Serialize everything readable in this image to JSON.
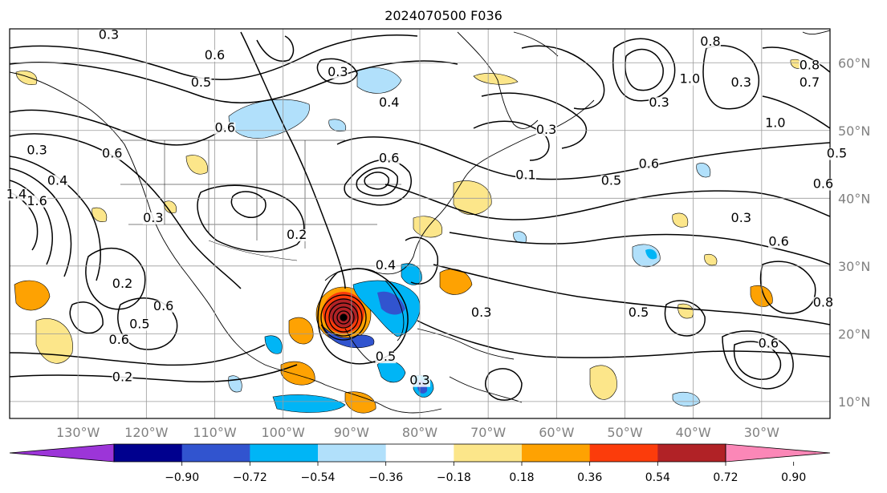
{
  "title": "2024070500 F036",
  "map": {
    "lon_range": [
      -140,
      -20
    ],
    "lat_range": [
      7.5,
      65
    ],
    "lon_ticks": [
      "130°W",
      "120°W",
      "110°W",
      "100°W",
      "90°W",
      "80°W",
      "70°W",
      "60°W",
      "50°W",
      "40°W",
      "30°W"
    ],
    "lat_ticks": [
      "10°N",
      "20°N",
      "30°N",
      "40°N",
      "50°N",
      "60°N"
    ],
    "tick_color": "#808080",
    "grid": true,
    "contour_labels": [
      {
        "text": "0.3",
        "lon": -125.5,
        "lat": 63.5
      },
      {
        "text": "0.6",
        "lon": -110,
        "lat": 60.5
      },
      {
        "text": "0.5",
        "lon": -112,
        "lat": 56.5
      },
      {
        "text": "0.3",
        "lon": -92,
        "lat": 58
      },
      {
        "text": "0.6",
        "lon": -108.5,
        "lat": 49.8
      },
      {
        "text": "0.4",
        "lon": -84.5,
        "lat": 53.5
      },
      {
        "text": "0.3",
        "lon": -61.5,
        "lat": 49.5
      },
      {
        "text": "0.3",
        "lon": -45,
        "lat": 53.5
      },
      {
        "text": "1.0",
        "lon": -40.5,
        "lat": 57
      },
      {
        "text": "0.8",
        "lon": -23,
        "lat": 59
      },
      {
        "text": "0.7",
        "lon": -23,
        "lat": 56.5
      },
      {
        "text": "0.8",
        "lon": -37.5,
        "lat": 62.5
      },
      {
        "text": "0.3",
        "lon": -33,
        "lat": 56.5
      },
      {
        "text": "1.0",
        "lon": -28,
        "lat": 50.5
      },
      {
        "text": "0.6",
        "lon": -84.5,
        "lat": 45.3
      },
      {
        "text": "0.1",
        "lon": -64.5,
        "lat": 42.8
      },
      {
        "text": "0.5",
        "lon": -52,
        "lat": 42
      },
      {
        "text": "0.6",
        "lon": -46.5,
        "lat": 44.5
      },
      {
        "text": "0.3",
        "lon": -33,
        "lat": 36.5
      },
      {
        "text": "0.6",
        "lon": -27.5,
        "lat": 33
      },
      {
        "text": "0.5",
        "lon": -19,
        "lat": 46
      },
      {
        "text": "0.6",
        "lon": -21,
        "lat": 41.5
      },
      {
        "text": "0.3",
        "lon": -136,
        "lat": 46.5
      },
      {
        "text": "0.6",
        "lon": -125,
        "lat": 46
      },
      {
        "text": "0.4",
        "lon": -133,
        "lat": 42
      },
      {
        "text": "1.4",
        "lon": -139,
        "lat": 40
      },
      {
        "text": "1.6",
        "lon": -136,
        "lat": 39
      },
      {
        "text": "0.2",
        "lon": -98,
        "lat": 34
      },
      {
        "text": "0.3",
        "lon": -119,
        "lat": 36.5
      },
      {
        "text": "0.4",
        "lon": -85,
        "lat": 29.5
      },
      {
        "text": "0.2",
        "lon": -123.5,
        "lat": 26.8
      },
      {
        "text": "0.6",
        "lon": -117.5,
        "lat": 23.5
      },
      {
        "text": "0.5",
        "lon": -121,
        "lat": 20.8
      },
      {
        "text": "0.6",
        "lon": -124,
        "lat": 18.5
      },
      {
        "text": "0.3",
        "lon": -71,
        "lat": 22.5
      },
      {
        "text": "0.5",
        "lon": -48,
        "lat": 22.5
      },
      {
        "text": "0.6",
        "lon": -29,
        "lat": 18
      },
      {
        "text": "0.8",
        "lon": -21,
        "lat": 24
      },
      {
        "text": "0.3",
        "lon": -80,
        "lat": 12.5
      },
      {
        "text": "0.2",
        "lon": -123.5,
        "lat": 13
      },
      {
        "text": "0.5",
        "lon": -85,
        "lat": 16
      }
    ]
  },
  "colorbar": {
    "ticks": [
      "−0.90",
      "−0.72",
      "−0.54",
      "−0.36",
      "−0.18",
      "0.18",
      "0.36",
      "0.54",
      "0.72",
      "0.90"
    ],
    "colors": [
      "#9c35d8",
      "#00008e",
      "#3154cf",
      "#00b5f6",
      "#b1e0fb",
      "#ffffff",
      "#fce68a",
      "#fea202",
      "#fc3c0b",
      "#b12226",
      "#fb87b7"
    ]
  }
}
